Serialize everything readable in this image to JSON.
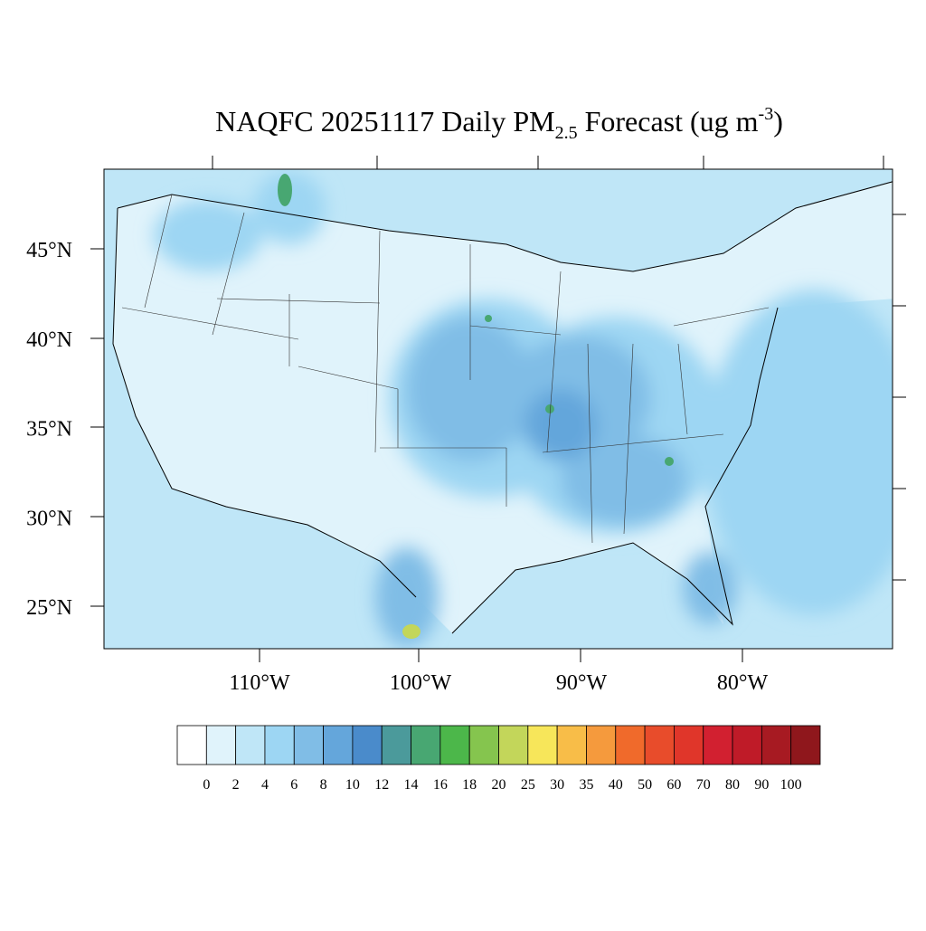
{
  "map": {
    "title": {
      "text": "NAQFC 20251117 Daily PM",
      "sub": "2.5",
      "mid": " Forecast (ug m",
      "sup": "-3",
      "end": ")"
    },
    "lat_labels": [
      "45°N",
      "40°N",
      "35°N",
      "30°N",
      "25°N"
    ],
    "lon_labels": [
      "110°W",
      "100°W",
      "90°W",
      "80°W"
    ],
    "colorbar": {
      "levels": [
        0,
        2,
        4,
        6,
        8,
        10,
        12,
        14,
        16,
        18,
        20,
        25,
        30,
        35,
        40,
        50,
        60,
        70,
        80,
        90,
        100
      ],
      "colors": [
        "#ffffff",
        "#e0f3fb",
        "#bfe6f7",
        "#9dd6f3",
        "#80bde6",
        "#64a6db",
        "#4a8bcb",
        "#4b9a9b",
        "#48a772",
        "#4cb74a",
        "#85c54e",
        "#c3d65a",
        "#f7e65a",
        "#f8bd48",
        "#f59a3d",
        "#f06a2b",
        "#e84c2b",
        "#e0362a",
        "#d22030",
        "#bf1b28",
        "#a71a22",
        "#8f171c"
      ]
    }
  }
}
